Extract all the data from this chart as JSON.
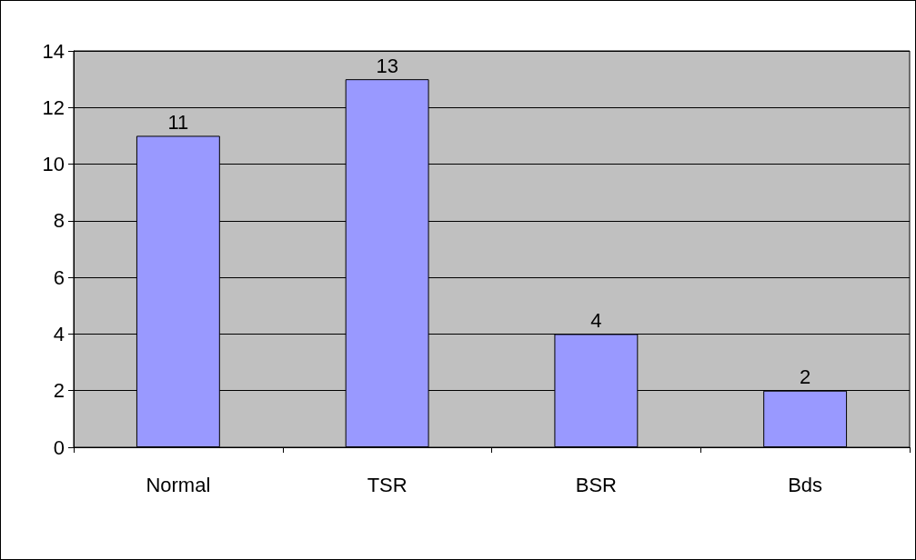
{
  "chart_data": {
    "type": "bar",
    "categories": [
      "Normal",
      "TSR",
      "BSR",
      "Bds"
    ],
    "values": [
      11,
      13,
      4,
      2
    ],
    "color": "#9999ff",
    "ylim": [
      0,
      14
    ],
    "yticks": [
      0,
      2,
      4,
      6,
      8,
      10,
      12,
      14
    ],
    "grid": "y",
    "data_labels": true
  }
}
